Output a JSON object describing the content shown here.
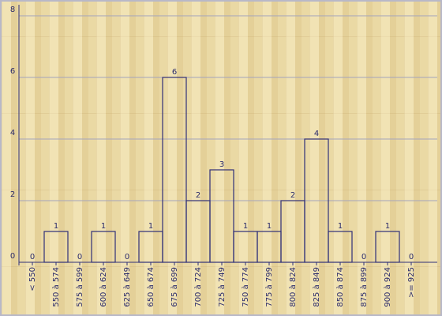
{
  "chart_data": {
    "type": "bar",
    "categories": [
      "< 550",
      "550 à 574",
      "575 à 599",
      "600 à 624",
      "625 à 649",
      "650 à 674",
      "675 à 699",
      "700 à 724",
      "725 à 749",
      "750 à 774",
      "775 à 799",
      "800 à 824",
      "825 à 849",
      "850 à 874",
      "875 à 899",
      "900 à 924",
      ">= 925"
    ],
    "values": [
      0,
      1,
      0,
      1,
      0,
      1,
      6,
      2,
      3,
      1,
      1,
      2,
      4,
      1,
      0,
      1,
      0
    ],
    "color": "#303078",
    "ylim": [
      0,
      8
    ],
    "yticks": [
      0,
      2,
      4,
      6,
      8
    ],
    "grid": true
  }
}
